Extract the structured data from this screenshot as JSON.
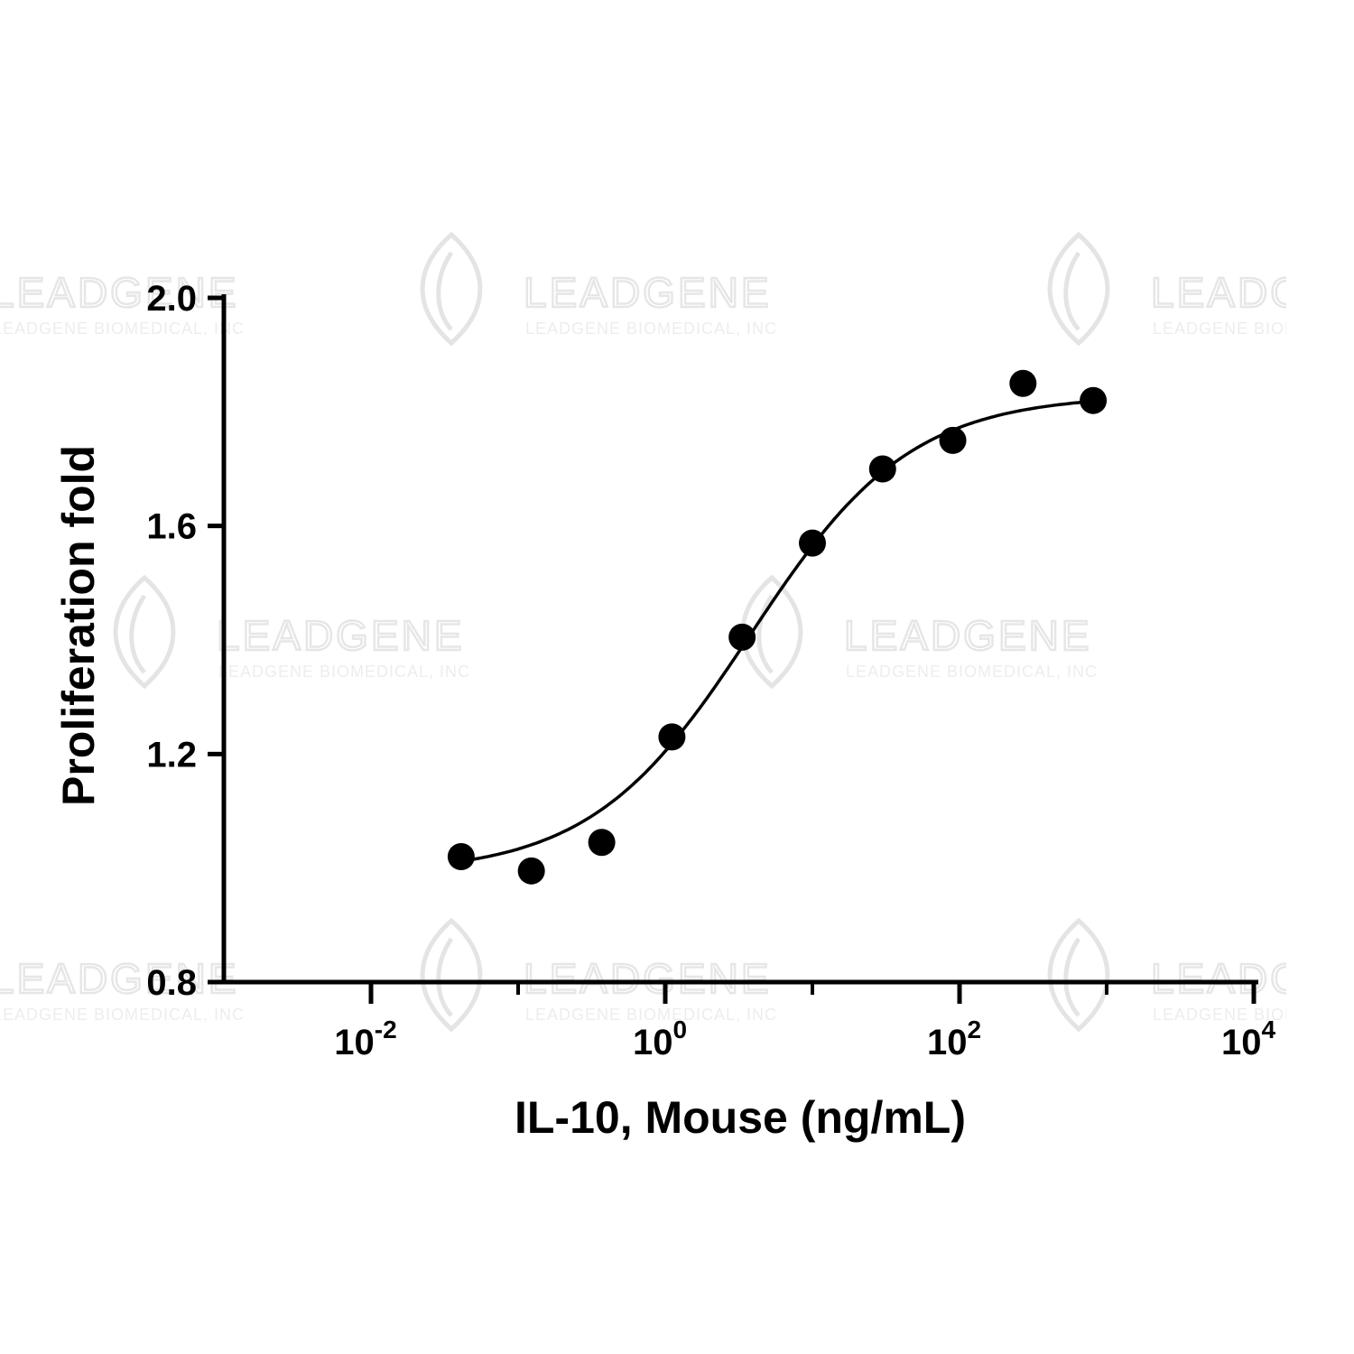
{
  "chart_data": {
    "type": "scatter",
    "xlabel": "IL-10, Mouse (ng/mL)",
    "ylabel": "Proliferation fold",
    "x_scale": "log10",
    "xlim": [
      0.001,
      10000
    ],
    "ylim": [
      0.8,
      2.0
    ],
    "x_ticks": [
      {
        "value": 0.01,
        "base": "10",
        "exp": "-2"
      },
      {
        "value": 1,
        "base": "10",
        "exp": "0"
      },
      {
        "value": 100,
        "base": "10",
        "exp": "2"
      },
      {
        "value": 10000,
        "base": "10",
        "exp": "4"
      }
    ],
    "y_ticks": [
      {
        "value": 0.8,
        "label": "0.8"
      },
      {
        "value": 1.2,
        "label": "1.2"
      },
      {
        "value": 1.6,
        "label": "1.6"
      },
      {
        "value": 2.0,
        "label": "2.0"
      }
    ],
    "grid": false,
    "points": [
      {
        "x": 0.041,
        "y": 1.02
      },
      {
        "x": 0.123,
        "y": 0.995
      },
      {
        "x": 0.37,
        "y": 1.045
      },
      {
        "x": 1.11,
        "y": 1.23
      },
      {
        "x": 3.33,
        "y": 1.405
      },
      {
        "x": 10,
        "y": 1.57
      },
      {
        "x": 30,
        "y": 1.7
      },
      {
        "x": 90,
        "y": 1.75
      },
      {
        "x": 270,
        "y": 1.85
      },
      {
        "x": 810,
        "y": 1.82
      }
    ],
    "fit_curve": {
      "model": "4PL",
      "bottom": 0.99,
      "top": 1.83,
      "ec50": 3.8,
      "hill": 0.8
    }
  },
  "watermark": {
    "brand": "LEADGENE",
    "tagline": "LEADGENE BIOMEDICAL, INC"
  }
}
